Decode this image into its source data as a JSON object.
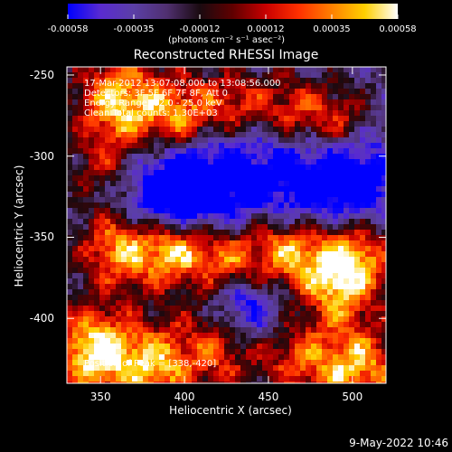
{
  "colorbar": {
    "tick_labels": [
      "-0.00058",
      "-0.00035",
      "-0.00012",
      "0.00012",
      "0.00035",
      "0.00058"
    ],
    "units": "(photons cm⁻² s⁻¹ asec⁻²)",
    "colormap": [
      "#0000ff",
      "#5a2bd0",
      "#5b3fa6",
      "#503070",
      "#1a0a10",
      "#600000",
      "#c80000",
      "#ff3000",
      "#ff8000",
      "#ffd000",
      "#ffffff"
    ]
  },
  "title": "Reconstructed RHESSI Image",
  "axes": {
    "xlabel": "Heliocentric X (arcsec)",
    "ylabel": "Heliocentric Y (arcsec)",
    "xticks": [
      "350",
      "400",
      "450",
      "500"
    ],
    "yticks": [
      "-250",
      "-300",
      "-350",
      "-400"
    ],
    "xlim": [
      330,
      520
    ],
    "ylim": [
      -440,
      -245
    ]
  },
  "annotations": {
    "line1": "17-Mar-2012 13:07:08.000 to 13:08:56.000",
    "line2": "Detectors: 3F 5F 6F 7F 8F, Att 0",
    "line3": "Energy Range: 12.0 - 25.0 keV",
    "line4": "Clean     Total counts: 1.30E+03",
    "peak": "Position of Peak = [338,-420]"
  },
  "footer_date": "9-May-2022 10:46"
}
